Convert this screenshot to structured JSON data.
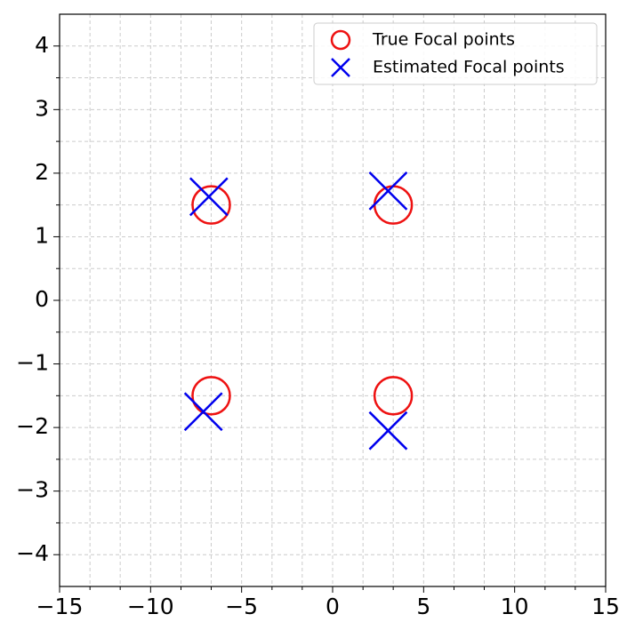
{
  "chart_data": {
    "type": "scatter",
    "series": [
      {
        "name": "True Focal points",
        "color": "#ee1111",
        "marker": "circle",
        "x": [
          -6.67,
          3.33,
          -6.67,
          3.33
        ],
        "values": [
          1.5,
          1.5,
          -1.5,
          -1.5
        ]
      },
      {
        "name": "Estimated Focal points",
        "color": "#0000ee",
        "marker": "x",
        "x": [
          -6.8,
          3.05,
          -7.1,
          3.05
        ],
        "values": [
          1.63,
          1.72,
          -1.75,
          -2.05
        ]
      }
    ],
    "xlim": [
      -15,
      15
    ],
    "xticks": [
      {
        "value": -15,
        "label": "−15"
      },
      {
        "value": -10,
        "label": "−10"
      },
      {
        "value": -5,
        "label": "−5"
      },
      0,
      5,
      10,
      15
    ],
    "xminorticks": [
      -13.33,
      -11.67,
      -8.33,
      -6.67,
      -3.33,
      -1.67,
      1.67,
      3.33,
      6.67,
      8.33,
      11.67,
      13.33
    ],
    "ylim": [
      -4.5,
      4.5
    ],
    "yticks": [
      {
        "value": -4,
        "label": "−4"
      },
      {
        "value": -3,
        "label": "−3"
      },
      {
        "value": -2,
        "label": "−2"
      },
      {
        "value": -1,
        "label": "−1"
      },
      0,
      1,
      2,
      3,
      4
    ],
    "yminorticks": [
      -3.5,
      -2.5,
      -1.5,
      -0.5,
      0.5,
      1.5,
      2.5,
      3.5
    ],
    "grid": true,
    "legend": "upper-right"
  }
}
